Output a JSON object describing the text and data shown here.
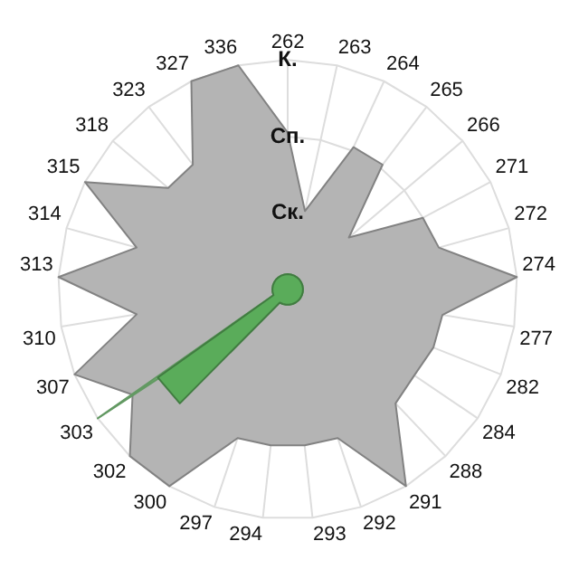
{
  "chart_data": {
    "type": "radar",
    "categories": [
      "262",
      "263",
      "264",
      "265",
      "266",
      "271",
      "272",
      "274",
      "277",
      "282",
      "284",
      "288",
      "291",
      "292",
      "293",
      "294",
      "297",
      "300",
      "302",
      "303",
      "307",
      "310",
      "313",
      "314",
      "315",
      "318",
      "323",
      "327",
      "336"
    ],
    "ylim": [
      0,
      3
    ],
    "yticks": [
      {
        "value": 1,
        "label": "Ск."
      },
      {
        "value": 2,
        "label": "Сп."
      },
      {
        "value": 3,
        "label": "К."
      }
    ],
    "grid": true,
    "legend": false,
    "marker": "none",
    "series": [
      {
        "color": "#b4b4b4",
        "values": [
          2.05,
          1.05,
          2.05,
          2.05,
          1.05,
          2.0,
          2.05,
          3.0,
          2.05,
          2.05,
          2.0,
          2.05,
          3.0,
          2.05,
          2.05,
          2.05,
          2.05,
          3.0,
          3.0,
          2.45,
          3.0,
          2.0,
          3.0,
          2.05,
          3.0,
          2.05,
          2.05,
          3.0,
          3.0
        ]
      },
      {
        "color": "#88d488",
        "values": [
          0.2,
          0.2,
          0.2,
          0.2,
          0.2,
          0.2,
          0.2,
          0.2,
          0.2,
          0.2,
          0.2,
          0.2,
          0.2,
          0.2,
          0.2,
          0.2,
          0.2,
          0.2,
          0.2,
          3.0,
          0.2,
          0.2,
          0.2,
          0.2,
          0.2,
          0.2,
          0.2,
          0.2,
          0.2
        ]
      },
      {
        "color": "#5aac5a",
        "values": [
          0.2,
          0.2,
          0.2,
          0.2,
          0.2,
          0.2,
          0.2,
          0.2,
          0.2,
          0.2,
          0.2,
          0.2,
          0.2,
          0.2,
          0.2,
          0.2,
          0.2,
          0.2,
          2.05,
          2.05,
          0.2,
          0.2,
          0.2,
          0.2,
          0.2,
          0.2,
          0.2,
          0.2,
          0.2
        ]
      }
    ]
  }
}
